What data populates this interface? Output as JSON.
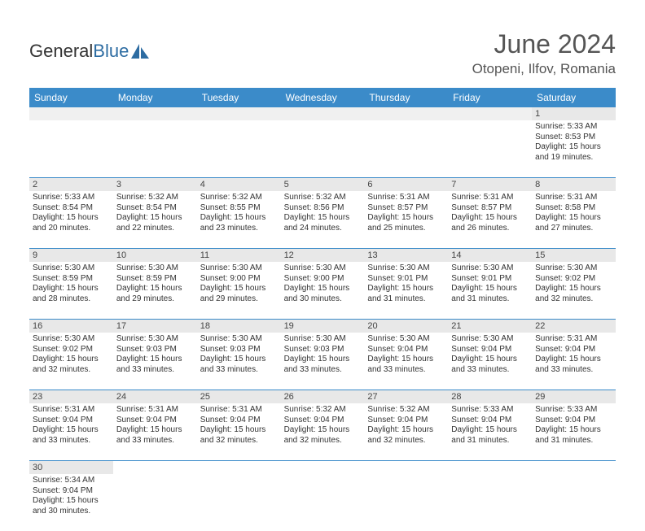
{
  "brand": {
    "part1": "General",
    "part2": "Blue"
  },
  "header": {
    "month": "June 2024",
    "location": "Otopeni, Ilfov, Romania"
  },
  "colors": {
    "header_bg": "#3b8bc9",
    "header_text": "#ffffff",
    "daynum_bg": "#e8e8e8",
    "border": "#3b8bc9",
    "text": "#333333",
    "title": "#555555",
    "brand_blue": "#2d6ca2"
  },
  "daysOfWeek": [
    "Sunday",
    "Monday",
    "Tuesday",
    "Wednesday",
    "Thursday",
    "Friday",
    "Saturday"
  ],
  "weeks": [
    [
      null,
      null,
      null,
      null,
      null,
      null,
      {
        "n": "1",
        "sr": "5:33 AM",
        "ss": "8:53 PM",
        "dl": "15 hours and 19 minutes."
      }
    ],
    [
      {
        "n": "2",
        "sr": "5:33 AM",
        "ss": "8:54 PM",
        "dl": "15 hours and 20 minutes."
      },
      {
        "n": "3",
        "sr": "5:32 AM",
        "ss": "8:54 PM",
        "dl": "15 hours and 22 minutes."
      },
      {
        "n": "4",
        "sr": "5:32 AM",
        "ss": "8:55 PM",
        "dl": "15 hours and 23 minutes."
      },
      {
        "n": "5",
        "sr": "5:32 AM",
        "ss": "8:56 PM",
        "dl": "15 hours and 24 minutes."
      },
      {
        "n": "6",
        "sr": "5:31 AM",
        "ss": "8:57 PM",
        "dl": "15 hours and 25 minutes."
      },
      {
        "n": "7",
        "sr": "5:31 AM",
        "ss": "8:57 PM",
        "dl": "15 hours and 26 minutes."
      },
      {
        "n": "8",
        "sr": "5:31 AM",
        "ss": "8:58 PM",
        "dl": "15 hours and 27 minutes."
      }
    ],
    [
      {
        "n": "9",
        "sr": "5:30 AM",
        "ss": "8:59 PM",
        "dl": "15 hours and 28 minutes."
      },
      {
        "n": "10",
        "sr": "5:30 AM",
        "ss": "8:59 PM",
        "dl": "15 hours and 29 minutes."
      },
      {
        "n": "11",
        "sr": "5:30 AM",
        "ss": "9:00 PM",
        "dl": "15 hours and 29 minutes."
      },
      {
        "n": "12",
        "sr": "5:30 AM",
        "ss": "9:00 PM",
        "dl": "15 hours and 30 minutes."
      },
      {
        "n": "13",
        "sr": "5:30 AM",
        "ss": "9:01 PM",
        "dl": "15 hours and 31 minutes."
      },
      {
        "n": "14",
        "sr": "5:30 AM",
        "ss": "9:01 PM",
        "dl": "15 hours and 31 minutes."
      },
      {
        "n": "15",
        "sr": "5:30 AM",
        "ss": "9:02 PM",
        "dl": "15 hours and 32 minutes."
      }
    ],
    [
      {
        "n": "16",
        "sr": "5:30 AM",
        "ss": "9:02 PM",
        "dl": "15 hours and 32 minutes."
      },
      {
        "n": "17",
        "sr": "5:30 AM",
        "ss": "9:03 PM",
        "dl": "15 hours and 33 minutes."
      },
      {
        "n": "18",
        "sr": "5:30 AM",
        "ss": "9:03 PM",
        "dl": "15 hours and 33 minutes."
      },
      {
        "n": "19",
        "sr": "5:30 AM",
        "ss": "9:03 PM",
        "dl": "15 hours and 33 minutes."
      },
      {
        "n": "20",
        "sr": "5:30 AM",
        "ss": "9:04 PM",
        "dl": "15 hours and 33 minutes."
      },
      {
        "n": "21",
        "sr": "5:30 AM",
        "ss": "9:04 PM",
        "dl": "15 hours and 33 minutes."
      },
      {
        "n": "22",
        "sr": "5:31 AM",
        "ss": "9:04 PM",
        "dl": "15 hours and 33 minutes."
      }
    ],
    [
      {
        "n": "23",
        "sr": "5:31 AM",
        "ss": "9:04 PM",
        "dl": "15 hours and 33 minutes."
      },
      {
        "n": "24",
        "sr": "5:31 AM",
        "ss": "9:04 PM",
        "dl": "15 hours and 33 minutes."
      },
      {
        "n": "25",
        "sr": "5:31 AM",
        "ss": "9:04 PM",
        "dl": "15 hours and 32 minutes."
      },
      {
        "n": "26",
        "sr": "5:32 AM",
        "ss": "9:04 PM",
        "dl": "15 hours and 32 minutes."
      },
      {
        "n": "27",
        "sr": "5:32 AM",
        "ss": "9:04 PM",
        "dl": "15 hours and 32 minutes."
      },
      {
        "n": "28",
        "sr": "5:33 AM",
        "ss": "9:04 PM",
        "dl": "15 hours and 31 minutes."
      },
      {
        "n": "29",
        "sr": "5:33 AM",
        "ss": "9:04 PM",
        "dl": "15 hours and 31 minutes."
      }
    ],
    [
      {
        "n": "30",
        "sr": "5:34 AM",
        "ss": "9:04 PM",
        "dl": "15 hours and 30 minutes."
      },
      null,
      null,
      null,
      null,
      null,
      null
    ]
  ],
  "labels": {
    "sunrise": "Sunrise: ",
    "sunset": "Sunset: ",
    "daylight": "Daylight: "
  }
}
